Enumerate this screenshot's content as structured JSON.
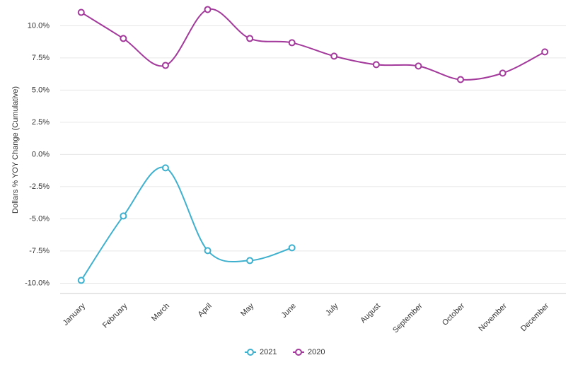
{
  "chart_data": {
    "type": "line",
    "y_label": "Dollars % YOY Change (Cumulative)",
    "categories": [
      "January",
      "February",
      "March",
      "April",
      "May",
      "June",
      "July",
      "August",
      "September",
      "October",
      "November",
      "December"
    ],
    "series": [
      {
        "name": "2021",
        "color": "#3fb1ce",
        "values": [
          -9.78,
          -4.78,
          -1.04,
          -7.47,
          -8.24,
          -7.25,
          null,
          null,
          null,
          null,
          null,
          null
        ]
      },
      {
        "name": "2020",
        "color": "#a2399b",
        "values": [
          11.04,
          9.01,
          6.92,
          11.26,
          9.01,
          8.68,
          7.64,
          6.98,
          6.87,
          5.82,
          6.32,
          7.97
        ]
      }
    ],
    "ylim": [
      -10.8,
      12
    ],
    "yticks": [
      {
        "value": -10,
        "label": "-10.0%"
      },
      {
        "value": -7.5,
        "label": "-7.5%"
      },
      {
        "value": -5,
        "label": "-5.0%"
      },
      {
        "value": -2.5,
        "label": "-2.5%"
      },
      {
        "value": 0,
        "label": "0.0%"
      },
      {
        "value": 2.5,
        "label": "2.5%"
      },
      {
        "value": 5,
        "label": "5.0%"
      },
      {
        "value": 7.5,
        "label": "7.5%"
      },
      {
        "value": 10,
        "label": "10.0%"
      }
    ],
    "grid": true,
    "legend": "bottom"
  }
}
